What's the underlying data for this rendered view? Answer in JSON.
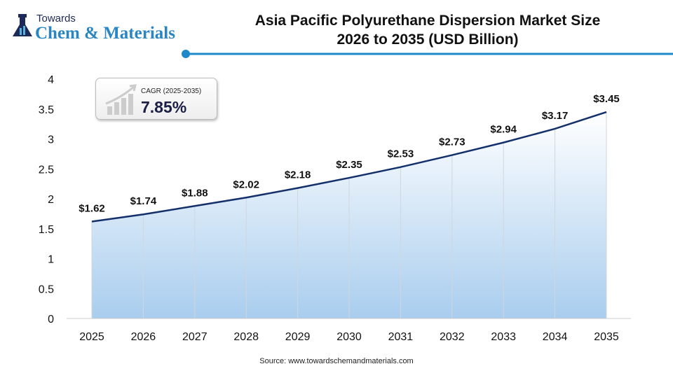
{
  "logo": {
    "line1": "Towards",
    "line2": "Chem & Materials"
  },
  "title_line1": "Asia Pacific Polyurethane Dispersion Market Size",
  "title_line2": "2026 to 2035 (USD Billion)",
  "cagr": {
    "label": "CAGR (2025-2035)",
    "value": "7.85%"
  },
  "source": "Source: www.towardschemandmaterials.com",
  "colors": {
    "line": "#13306b",
    "fill": "#a9cdee",
    "accent": "#1e88c9"
  },
  "chart_data": {
    "type": "area",
    "title": "Asia Pacific Polyurethane Dispersion Market Size 2026 to 2035 (USD Billion)",
    "categories": [
      "2025",
      "2026",
      "2027",
      "2028",
      "2029",
      "2030",
      "2031",
      "2032",
      "2033",
      "2034",
      "2035"
    ],
    "values": [
      1.62,
      1.74,
      1.88,
      2.02,
      2.18,
      2.35,
      2.53,
      2.73,
      2.94,
      3.17,
      3.45
    ],
    "data_labels": [
      "$1.62",
      "$1.74",
      "$1.88",
      "$2.02",
      "$2.18",
      "$2.35",
      "$2.53",
      "$2.73",
      "$2.94",
      "$3.17",
      "$3.45"
    ],
    "yticks": [
      "0",
      "0.5",
      "1",
      "1.5",
      "2",
      "2.5",
      "3",
      "3.5",
      "4"
    ],
    "ylim": [
      0,
      4
    ],
    "grid": false,
    "xlabel": "",
    "ylabel": ""
  }
}
